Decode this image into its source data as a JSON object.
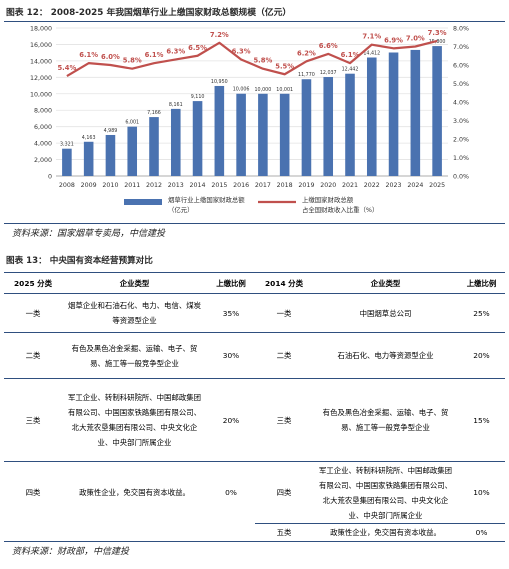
{
  "figure1": {
    "title": "图表 12：  2008-2025 年我国烟草行业上缴国家财政总额规模（亿元）",
    "source": "资料来源：国家烟草专卖局，中信建投"
  },
  "chart_data": {
    "type": "bar",
    "categories": [
      "2008",
      "2009",
      "2010",
      "2011",
      "2012",
      "2013",
      "2014",
      "2015",
      "2016",
      "2017",
      "2018",
      "2019",
      "2020",
      "2021",
      "2022",
      "2023",
      "2024",
      "2025"
    ],
    "ylim": [
      0,
      18000
    ],
    "y_ticks": [
      "0",
      "2,000",
      "4,000",
      "6,000",
      "8,000",
      "10,000",
      "12,000",
      "14,000",
      "16,000",
      "18,000"
    ],
    "y2lim": [
      0,
      0.08
    ],
    "y2_ticks": [
      "0.0%",
      "1.0%",
      "2.0%",
      "3.0%",
      "4.0%",
      "5.0%",
      "6.0%",
      "7.0%",
      "8.0%"
    ],
    "series": [
      {
        "name": "烟草行业上缴国家财政总额（亿元）",
        "type": "bar",
        "color": "#4a72b0",
        "values": [
          3321,
          4163,
          4989,
          6001,
          7166,
          8161,
          9110,
          10950,
          10006,
          10000,
          10001,
          11770,
          12037,
          12442,
          14412,
          15020,
          15335,
          15800
        ],
        "labels": [
          "3,321",
          "4,163",
          "4,989",
          "6,001",
          "7,166",
          "8,161",
          "9,110",
          "10,950",
          "10,006",
          "10,000",
          "10,001",
          "11,770",
          "12,037",
          "12,442",
          "14,412",
          "",
          "",
          "15,800"
        ]
      },
      {
        "name": "上缴国家财政总额占全国财政收入比重（%）",
        "type": "line",
        "axis": "right",
        "color": "#c0504d",
        "values": [
          0.054,
          0.061,
          0.06,
          0.058,
          0.061,
          0.063,
          0.065,
          0.072,
          0.063,
          0.058,
          0.055,
          0.062,
          0.066,
          0.061,
          0.071,
          0.069,
          0.07,
          0.073
        ],
        "labels": [
          "5.4%",
          "6.1%",
          "6.0%",
          "5.8%",
          "6.1%",
          "6.3%",
          "6.5%",
          "7.2%",
          "6.3%",
          "5.8%",
          "5.5%",
          "6.2%",
          "6.6%",
          "6.1%",
          "7.1%",
          "6.9%",
          "7.0%",
          "7.3%"
        ]
      }
    ],
    "legend": {
      "placement": "bottom",
      "bar_label_line1": "烟草行业上缴国家财政总额",
      "bar_label_line2": "（亿元）",
      "line_label_line1": "上缴国家财政总额",
      "line_label_line2": "占全国财政收入比重（%）"
    }
  },
  "figure2": {
    "title": "图表 13：  中央国有资本经营预算对比",
    "source": "资料来源：财政部，中信建投",
    "headers": [
      "2025 分类",
      "企业类型",
      "上缴比例",
      "2014 分类",
      "企业类型",
      "上缴比例"
    ],
    "rows": [
      {
        "c2025": "一类",
        "t2025": "烟草企业和石油石化、电力、电信、煤炭等资源型企业",
        "r2025": "35%",
        "c2014": "一类",
        "t2014": "中国烟草总公司",
        "r2014": "25%"
      },
      {
        "c2025": "二类",
        "t2025": "有色及黑色冶金采掘、运输、电子、贸易、施工等一般竞争型企业",
        "r2025": "30%",
        "c2014": "二类",
        "t2014": "石油石化、电力等资源型企业",
        "r2014": "20%"
      },
      {
        "c2025": "三类",
        "t2025": "军工企业、转制科研院所、中国邮政集团有限公司、中国国家铁路集团有限公司、北大荒农垦集团有限公司、中央文化企业、中央部门所属企业",
        "r2025": "20%",
        "c2014": "三类",
        "t2014": "有色及黑色冶金采掘、运输、电子、贸易、施工等一般竞争型企业",
        "r2014": "15%"
      },
      {
        "c2025": "四类",
        "t2025": "政策性企业，免交国有资本收益。",
        "r2025": "0%",
        "c2014": "四类",
        "t2014": "军工企业、转制科研院所、中国邮政集团有限公司、中国国家铁路集团有限公司、北大荒农垦集团有限公司、中央文化企业、中央部门所属企业",
        "r2014": "10%"
      },
      {
        "c2025": "",
        "t2025": "",
        "r2025": "",
        "c2014": "五类",
        "t2014": "政策性企业，免交国有资本收益。",
        "r2014": "0%"
      }
    ]
  }
}
